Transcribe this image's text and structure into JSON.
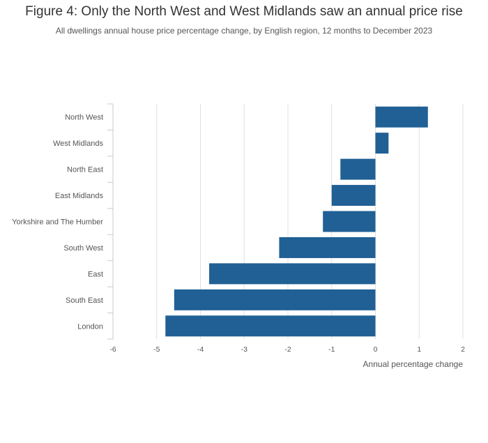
{
  "title": "Figure 4: Only the North West and West Midlands saw an annual price rise",
  "subtitle": "All dwellings annual house price percentage change, by English region, 12 months to December 2023",
  "colors": {
    "bar": "#206095",
    "grid": "#e0e0e0",
    "axis": "#c9c9d4"
  },
  "chart_data": {
    "type": "bar",
    "orientation": "horizontal",
    "title": "Figure 4: Only the North West and West Midlands saw an annual price rise",
    "subtitle": "All dwellings annual house price percentage change, by English region, 12 months to December 2023",
    "xlabel": "Annual percentage change",
    "ylabel": "",
    "categories": [
      "North West",
      "West Midlands",
      "North East",
      "East Midlands",
      "Yorkshire and The Humber",
      "South West",
      "East",
      "South East",
      "London"
    ],
    "values": [
      1.2,
      0.3,
      -0.8,
      -1.0,
      -1.2,
      -2.2,
      -3.8,
      -4.6,
      -4.8
    ],
    "xlim": [
      -6,
      2
    ],
    "xticks": [
      -6,
      -5,
      -4,
      -3,
      -2,
      -1,
      0,
      1,
      2
    ],
    "grid": true,
    "legend": "none"
  }
}
